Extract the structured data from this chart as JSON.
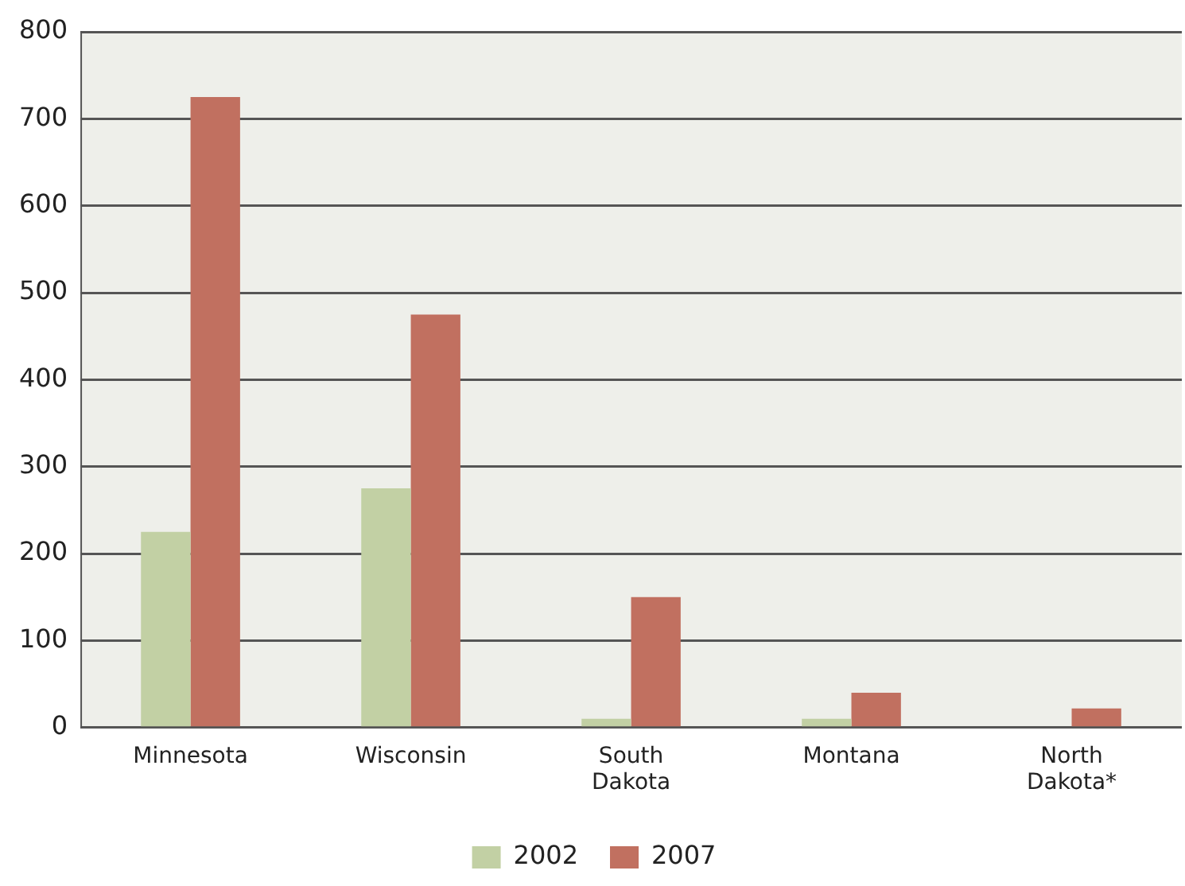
{
  "chart_data": {
    "type": "bar",
    "categories": [
      "Minnesota",
      "Wisconsin",
      "South Dakota",
      "Montana",
      "North Dakota*"
    ],
    "series": [
      {
        "name": "2002",
        "color": "#c2d0a4",
        "values": [
          225,
          275,
          10,
          10,
          null
        ]
      },
      {
        "name": "2007",
        "color": "#c17060",
        "values": [
          725,
          475,
          150,
          40,
          22
        ]
      }
    ],
    "ylim": [
      0,
      800
    ],
    "yticks": [
      0,
      100,
      200,
      300,
      400,
      500,
      600,
      700,
      800
    ],
    "grid": "y",
    "legend": "bottom"
  }
}
